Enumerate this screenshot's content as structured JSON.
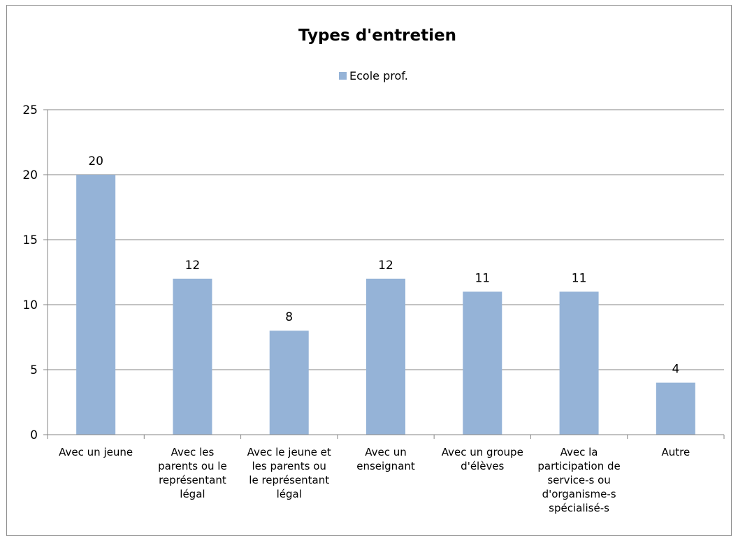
{
  "chart_data": {
    "type": "bar",
    "title": "Types d'entretien",
    "categories": [
      "Avec un jeune",
      "Avec les parents ou le représentant légal",
      "Avec le jeune et les parents ou le représentant légal",
      "Avec un enseignant",
      "Avec un groupe d'élèves",
      "Avec la participation de service-s ou d'organisme-s spécialisé-s",
      "Autre"
    ],
    "category_label_lines": [
      [
        "Avec un jeune"
      ],
      [
        "Avec les",
        "parents ou le",
        "représentant",
        "légal"
      ],
      [
        "Avec le jeune et",
        "les parents ou",
        "le représentant",
        "légal"
      ],
      [
        "Avec un",
        "enseignant"
      ],
      [
        "Avec un groupe",
        "d'élèves"
      ],
      [
        "Avec la",
        "participation de",
        "service-s ou",
        "d'organisme-s",
        "spécialisé-s"
      ],
      [
        "Autre"
      ]
    ],
    "series": [
      {
        "name": "Ecole prof.",
        "values": [
          20,
          12,
          8,
          12,
          11,
          11,
          4
        ]
      }
    ],
    "data_labels": [
      "20",
      "12",
      "8",
      "12",
      "11",
      "11",
      "4"
    ],
    "y_ticks": [
      "0",
      "5",
      "10",
      "15",
      "20",
      "25"
    ],
    "ylim": [
      0,
      25
    ],
    "xlabel": "",
    "ylabel": "",
    "grid": true,
    "legend_position": "top",
    "bar_color": "#95b3d7",
    "grid_color": "#868686"
  }
}
